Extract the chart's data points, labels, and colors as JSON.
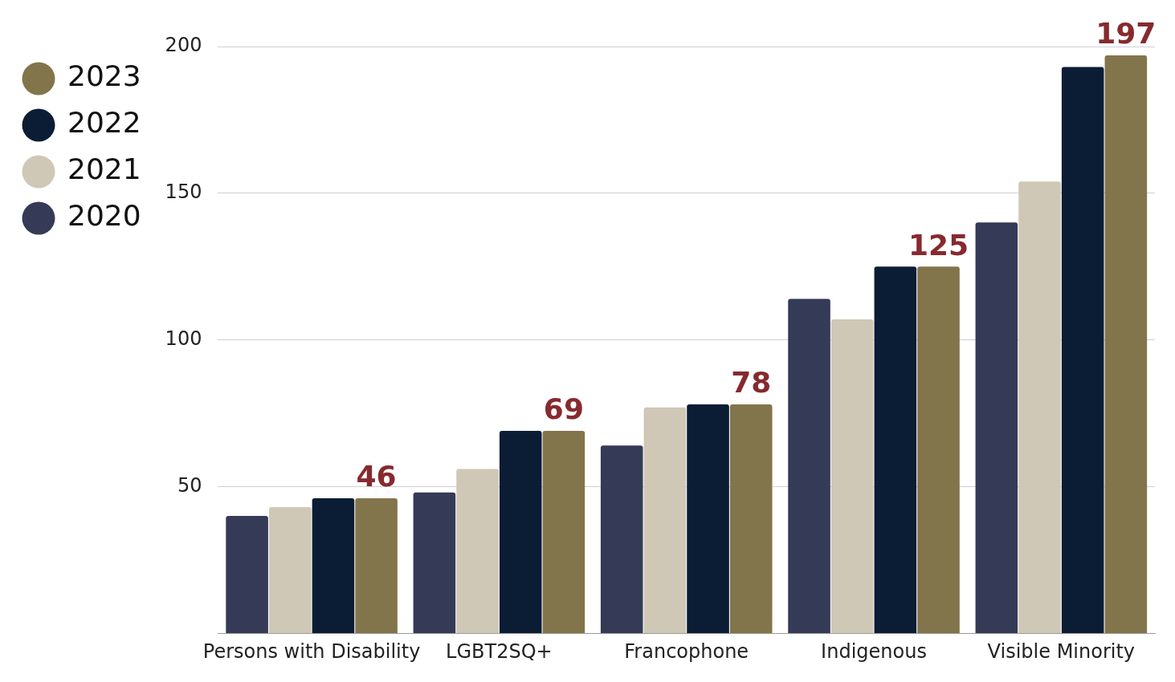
{
  "chart_data": {
    "type": "bar",
    "categories": [
      "Persons with Disability",
      "LGBT2SQ+",
      "Francophone",
      "Indigenous",
      "Visible Minority"
    ],
    "series": [
      {
        "name": "2020",
        "color": "#353a56",
        "values": [
          40,
          48,
          64,
          114,
          140
        ]
      },
      {
        "name": "2021",
        "color": "#cfc8b6",
        "values": [
          43,
          56,
          77,
          107,
          154
        ]
      },
      {
        "name": "2022",
        "color": "#0b1c35",
        "values": [
          46,
          69,
          78,
          125,
          193
        ]
      },
      {
        "name": "2023",
        "color": "#83754b",
        "values": [
          46,
          69,
          78,
          125,
          197
        ],
        "value_labels": [
          "46",
          "69",
          "78",
          "125",
          "197"
        ]
      }
    ],
    "ylim": [
      0,
      200
    ],
    "yticks": [
      50,
      100,
      150,
      200
    ],
    "grid": "y",
    "legend": "left"
  }
}
